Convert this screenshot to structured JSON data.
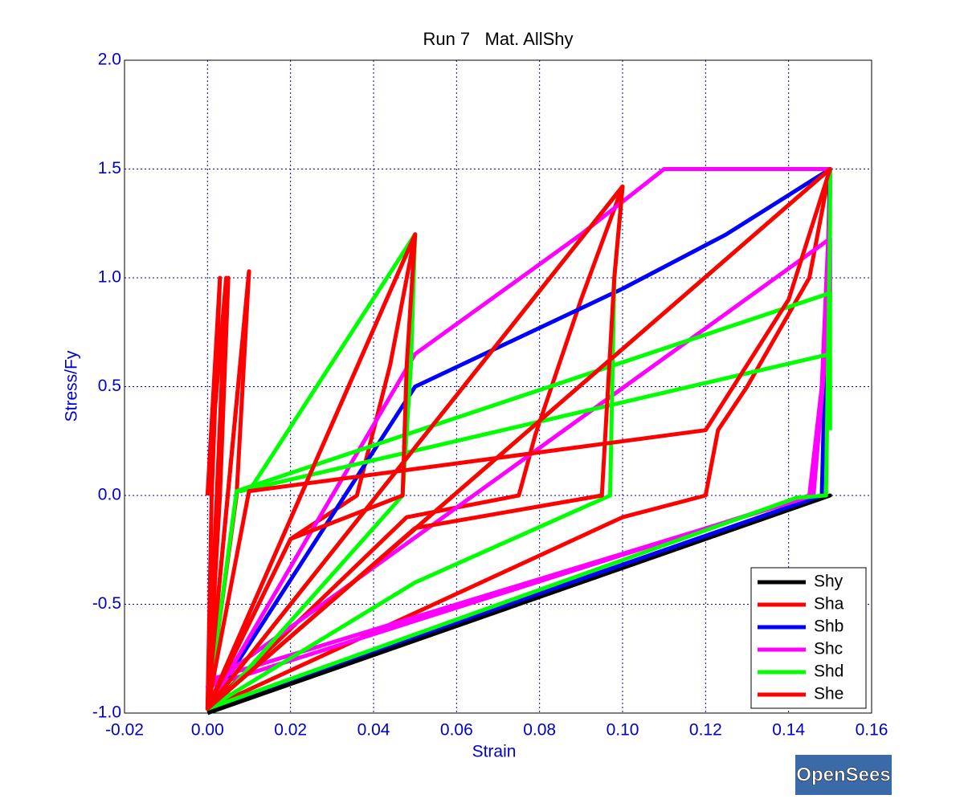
{
  "chart_data": {
    "type": "line",
    "title": "Run 7   Mat. AllShy",
    "x_label": "Strain",
    "y_label": "Stress/Fy",
    "xlim": [
      -0.02,
      0.16
    ],
    "xticks": [
      -0.02,
      {
        "value": 0,
        "label": "0.00"
      },
      0.02,
      0.04,
      0.06,
      0.08,
      {
        "value": 0.1,
        "label": "0.10"
      },
      0.12,
      0.14,
      0.16
    ],
    "ylim": [
      -1,
      2
    ],
    "yticks": [
      {
        "value": -1,
        "label": "-1.0"
      },
      -0.5,
      {
        "value": 0,
        "label": "0.0"
      },
      0.5,
      {
        "value": 1,
        "label": "1.0"
      },
      1.5,
      {
        "value": 2,
        "label": "2.0"
      }
    ],
    "grid": true,
    "legend": "lower right",
    "series": [
      {
        "name": "Shy",
        "color": "#000000",
        "x": [
          0,
          0.15,
          0
        ],
        "values": [
          -0.99,
          0,
          -1.0
        ]
      },
      {
        "name": "Sha",
        "color": "#ff0000",
        "x": [
          0,
          0.003,
          0.001,
          0,
          0.005,
          0.003,
          0,
          0.01,
          0.007,
          0,
          0.05,
          0.044,
          0.036,
          0.02,
          0,
          0.1,
          0.09,
          0.079,
          0.075,
          0.048,
          0,
          0.15,
          0.145,
          0.13,
          0.123,
          0.12,
          0.1,
          0
        ],
        "values": [
          0,
          1.0,
          0,
          -0.98,
          1.0,
          0,
          -0.98,
          1.03,
          0,
          -0.98,
          1.2,
          0.6,
          0,
          -0.2,
          -0.98,
          1.42,
          0.9,
          0.28,
          0,
          -0.1,
          -0.98,
          1.5,
          1.0,
          0.5,
          0.3,
          0,
          -0.1,
          -0.98
        ]
      },
      {
        "name": "Shb",
        "color": "#0000ff",
        "x": [
          0,
          0.05,
          0.1,
          0.125,
          0.15,
          0.148,
          0
        ],
        "values": [
          -0.98,
          0.5,
          0.95,
          1.2,
          1.5,
          0,
          -0.98
        ]
      },
      {
        "name": "Shc",
        "color": "#ff00ff",
        "x": [
          0,
          0.05,
          0.09,
          0.11,
          0.15,
          0.15,
          0.148,
          0.145,
          0,
          0.15,
          0.15,
          0.146,
          0
        ],
        "values": [
          -0.98,
          0.65,
          1.2,
          1.5,
          1.5,
          1.38,
          0.5,
          0,
          -0.88,
          1.18,
          0.9,
          0,
          -0.85
        ]
      },
      {
        "name": "Shd",
        "color": "#00ff00",
        "x": [
          0.01,
          0.05,
          0.049,
          0.047,
          0.04,
          0.005,
          0,
          0.1,
          0.098,
          0.097,
          0.05,
          0,
          0.15,
          0.15,
          0.149,
          0.142,
          0,
          0.007,
          0.15,
          0.15,
          0.008,
          0.15,
          0.15
        ],
        "values": [
          0.02,
          1.2,
          0.6,
          0,
          -0.15,
          -0.9,
          -0.98,
          1.42,
          1.0,
          0,
          -0.4,
          -0.98,
          1.5,
          1.25,
          0,
          -0.01,
          -0.98,
          0.02,
          0.93,
          0.65,
          0.02,
          0.65,
          0.3
        ]
      },
      {
        "name": "She",
        "color": "#ff0000",
        "x": [
          0,
          0.0045,
          0,
          0.01,
          0,
          0.05,
          0.048,
          0.047,
          0.02,
          0,
          0.1,
          0.098,
          0.095,
          0.05,
          0,
          0.15,
          0.14,
          0.12,
          0.01,
          0
        ],
        "values": [
          0,
          1.0,
          -0.98,
          1.03,
          -0.98,
          1.2,
          0.6,
          0,
          -0.2,
          -0.98,
          1.42,
          1.0,
          0,
          -0.15,
          -0.98,
          1.5,
          0.9,
          0.3,
          0.02,
          -0.98
        ]
      }
    ]
  },
  "logo": "OpenSees"
}
